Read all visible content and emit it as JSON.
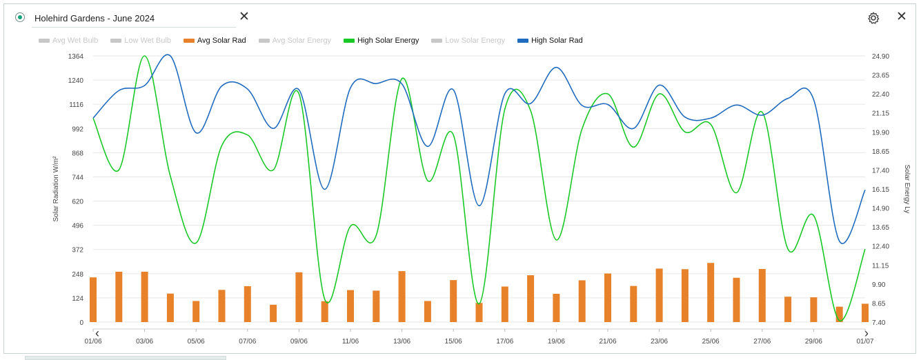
{
  "header": {
    "title": "Holehird Gardens - June 2024",
    "close_label": "✕",
    "settings_icon": "gear-icon",
    "close_right_label": "✕"
  },
  "legend": [
    {
      "label": "Avg Wet Bulb",
      "color": "#c8c8c8",
      "enabled": false
    },
    {
      "label": "Low Wet Bulb",
      "color": "#c8c8c8",
      "enabled": false
    },
    {
      "label": "Avg Solar Rad",
      "color": "#e8822a",
      "enabled": true
    },
    {
      "label": "Avg Solar Energy",
      "color": "#c8c8c8",
      "enabled": false
    },
    {
      "label": "High Solar Energy",
      "color": "#19c926",
      "enabled": true
    },
    {
      "label": "Low Solar Energy",
      "color": "#c8c8c8",
      "enabled": false
    },
    {
      "label": "High Solar Rad",
      "color": "#1f6bbf",
      "enabled": true
    }
  ],
  "nav": {
    "prev_label": "‹",
    "next_label": "›"
  },
  "chart_data": {
    "type": "bar+line",
    "x": [
      "01/06",
      "02/06",
      "03/06",
      "04/06",
      "05/06",
      "06/06",
      "07/06",
      "08/06",
      "09/06",
      "10/06",
      "11/06",
      "12/06",
      "13/06",
      "14/06",
      "15/06",
      "16/06",
      "17/06",
      "18/06",
      "19/06",
      "20/06",
      "21/06",
      "22/06",
      "23/06",
      "24/06",
      "25/06",
      "26/06",
      "27/06",
      "28/06",
      "29/06",
      "30/06",
      "01/07"
    ],
    "xticks": [
      "01/06",
      "03/06",
      "05/06",
      "07/06",
      "09/06",
      "11/06",
      "13/06",
      "15/06",
      "17/06",
      "19/06",
      "21/06",
      "23/06",
      "25/06",
      "27/06",
      "29/06",
      "01/07"
    ],
    "ylabel_left": "Solar Radiation W/m²",
    "ylabel_right": "Solar Energy Ly",
    "ylim_left": [
      0,
      1364
    ],
    "ylim_right": [
      7.4,
      24.9
    ],
    "yticks_left": [
      "0",
      "124",
      "248",
      "372",
      "496",
      "620",
      "744",
      "868",
      "992",
      "1116",
      "1240",
      "1364"
    ],
    "yticks_right": [
      "7.40",
      "8.65",
      "9.90",
      "11.15",
      "12.40",
      "13.65",
      "14.90",
      "16.15",
      "17.40",
      "18.65",
      "19.90",
      "21.15",
      "22.40",
      "23.65",
      "24.90"
    ],
    "grid": true,
    "series": [
      {
        "name": "Avg Solar Rad",
        "type": "bar",
        "axis": "left",
        "color": "#e8822a",
        "values": [
          229,
          258,
          258,
          146,
          108,
          165,
          184,
          89,
          255,
          107,
          164,
          161,
          261,
          108,
          215,
          98,
          182,
          240,
          145,
          214,
          249,
          185,
          274,
          271,
          303,
          227,
          272,
          130,
          127,
          79,
          94
        ]
      },
      {
        "name": "High Solar Energy",
        "type": "line",
        "axis": "right",
        "color": "#19c926",
        "values": [
          20.8,
          17.4,
          24.9,
          17.0,
          12.6,
          19.0,
          19.7,
          17.4,
          22.4,
          8.9,
          13.7,
          13.1,
          23.4,
          16.7,
          19.7,
          8.6,
          21.4,
          21.3,
          12.8,
          20.1,
          22.4,
          18.9,
          22.4,
          19.9,
          20.4,
          15.9,
          21.2,
          12.2,
          14.4,
          7.5,
          12.2
        ]
      },
      {
        "name": "High Solar Rad",
        "type": "line",
        "axis": "left",
        "color": "#1f6bbf",
        "values": [
          1045,
          1186,
          1212,
          1364,
          970,
          1210,
          1194,
          992,
          1190,
          680,
          1200,
          1222,
          1220,
          900,
          1190,
          596,
          1170,
          1120,
          1305,
          1110,
          1115,
          992,
          1214,
          1050,
          1045,
          1112,
          1060,
          1146,
          1140,
          415,
          677
        ]
      }
    ]
  }
}
